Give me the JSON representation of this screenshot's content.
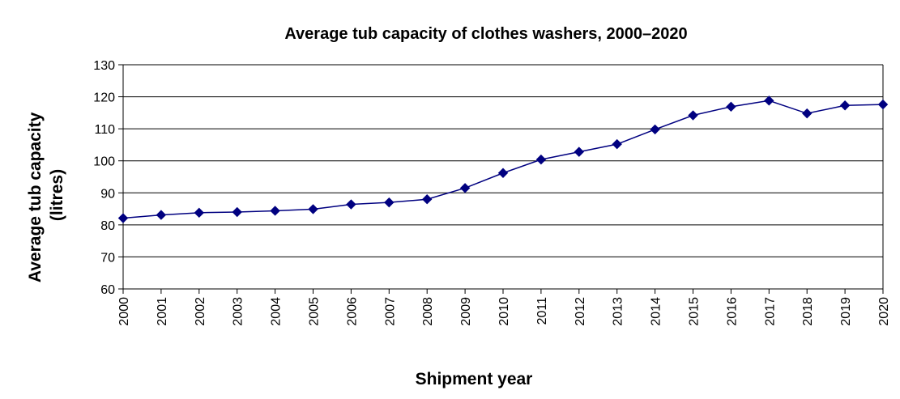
{
  "chart_data": {
    "type": "line",
    "title": "Average tub capacity of clothes washers, 2000–2020",
    "xlabel": "Shipment year",
    "ylabel_lines": [
      "Average tub capacity",
      "(litres)"
    ],
    "ylim": [
      60,
      130
    ],
    "yticks": [
      60,
      70,
      80,
      90,
      100,
      110,
      120,
      130
    ],
    "categories": [
      "2000",
      "2001",
      "2002",
      "2003",
      "2004",
      "2005",
      "2006",
      "2007",
      "2008",
      "2009",
      "2010",
      "2011",
      "2012",
      "2013",
      "2014",
      "2015",
      "2016",
      "2017",
      "2018",
      "2019",
      "2020"
    ],
    "series": [
      {
        "values": [
          82.1,
          83.1,
          83.8,
          84.0,
          84.4,
          84.9,
          86.4,
          87.0,
          88.0,
          91.5,
          96.2,
          100.4,
          102.8,
          105.2,
          109.8,
          114.2,
          116.9,
          118.8,
          114.8,
          117.3,
          117.6
        ],
        "color": "#000080",
        "marker": "diamond"
      }
    ],
    "grid": true
  }
}
